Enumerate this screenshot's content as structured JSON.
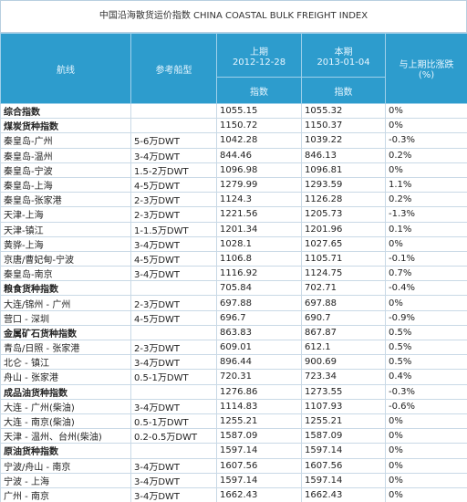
{
  "header": {
    "title": "中国沿海散货运价指数 CHINA COASTAL BULK FREIGHT INDEX"
  },
  "table": {
    "columns": {
      "route": "航线",
      "ship": "参考船型",
      "prev": {
        "label": "上期",
        "date": "2012-12-28",
        "sub": "指数"
      },
      "curr": {
        "label": "本期",
        "date": "2013-01-04",
        "sub": "指数"
      },
      "change": [
        "与上期比涨跌",
        "(%)"
      ]
    },
    "rows": [
      {
        "bold": true,
        "cells": [
          "综合指数",
          null,
          "1055.15",
          "1055.32",
          "0%"
        ]
      },
      {
        "bold": true,
        "cells": [
          "煤炭货种指数",
          null,
          "1150.72",
          "1150.37",
          "0%"
        ]
      },
      {
        "cells": [
          "秦皇岛-广州",
          "5-6万DWT",
          "1042.28",
          "1039.22",
          "-0.3%"
        ]
      },
      {
        "cells": [
          "秦皇岛-温州",
          "3-4万DWT",
          "844.46",
          "846.13",
          "0.2%"
        ]
      },
      {
        "cells": [
          "秦皇岛-宁波",
          "1.5-2万DWT",
          "1096.98",
          "1096.81",
          "0%"
        ]
      },
      {
        "cells": [
          "秦皇岛-上海",
          "4-5万DWT",
          "1279.99",
          "1293.59",
          "1.1%"
        ]
      },
      {
        "cells": [
          "秦皇岛-张家港",
          "2-3万DWT",
          "1124.3",
          "1126.28",
          "0.2%"
        ]
      },
      {
        "cells": [
          "天津-上海",
          "2-3万DWT",
          "1221.56",
          "1205.73",
          "-1.3%"
        ]
      },
      {
        "cells": [
          "天津-镇江",
          "1-1.5万DWT",
          "1201.34",
          "1201.96",
          "0.1%"
        ]
      },
      {
        "cells": [
          "黄骅-上海",
          "3-4万DWT",
          "1028.1",
          "1027.65",
          "0%"
        ]
      },
      {
        "cells": [
          "京唐/曹妃甸-宁波",
          "4-5万DWT",
          "1106.8",
          "1105.71",
          "-0.1%"
        ]
      },
      {
        "cells": [
          "秦皇岛-南京",
          "3-4万DWT",
          "1116.92",
          "1124.75",
          "0.7%"
        ]
      },
      {
        "bold": true,
        "cells": [
          "粮食货种指数",
          null,
          "705.84",
          "702.71",
          "-0.4%"
        ]
      },
      {
        "cells": [
          "大连/锦州 - 广州",
          "2-3万DWT",
          "697.88",
          "697.88",
          "0%"
        ]
      },
      {
        "cells": [
          "营口 - 深圳",
          "4-5万DWT",
          "696.7",
          "690.7",
          "-0.9%"
        ]
      },
      {
        "bold": true,
        "cells": [
          "金属矿石货种指数",
          null,
          "863.83",
          "867.87",
          "0.5%"
        ]
      },
      {
        "cells": [
          "青岛/日照 - 张家港",
          "2-3万DWT",
          "609.01",
          "612.1",
          "0.5%"
        ]
      },
      {
        "cells": [
          "北仑 - 镇江",
          "3-4万DWT",
          "896.44",
          "900.69",
          "0.5%"
        ]
      },
      {
        "cells": [
          "舟山 - 张家港",
          "0.5-1万DWT",
          "720.31",
          "723.34",
          "0.4%"
        ]
      },
      {
        "bold": true,
        "cells": [
          "成品油货种指数",
          null,
          "1276.86",
          "1273.55",
          "-0.3%"
        ]
      },
      {
        "cells": [
          "大连 - 广州(柴油)",
          "3-4万DWT",
          "1114.83",
          "1107.93",
          "-0.6%"
        ]
      },
      {
        "cells": [
          "大连 - 南京(柴油)",
          "0.5-1万DWT",
          "1255.21",
          "1255.21",
          "0%"
        ]
      },
      {
        "cells": [
          "天津 - 温州、台州(柴油)",
          "0.2-0.5万DWT",
          "1587.09",
          "1587.09",
          "0%"
        ]
      },
      {
        "bold": true,
        "cells": [
          "原油货种指数",
          null,
          "1597.14",
          "1597.14",
          "0%"
        ]
      },
      {
        "cells": [
          "宁波/舟山 - 南京",
          "3-4万DWT",
          "1607.56",
          "1607.56",
          "0%"
        ]
      },
      {
        "cells": [
          "宁波 - 上海",
          "3-4万DWT",
          "1597.14",
          "1597.14",
          "0%"
        ]
      },
      {
        "cells": [
          "广州 - 南京",
          "3-4万DWT",
          "1662.43",
          "1662.43",
          "0%"
        ]
      }
    ]
  }
}
